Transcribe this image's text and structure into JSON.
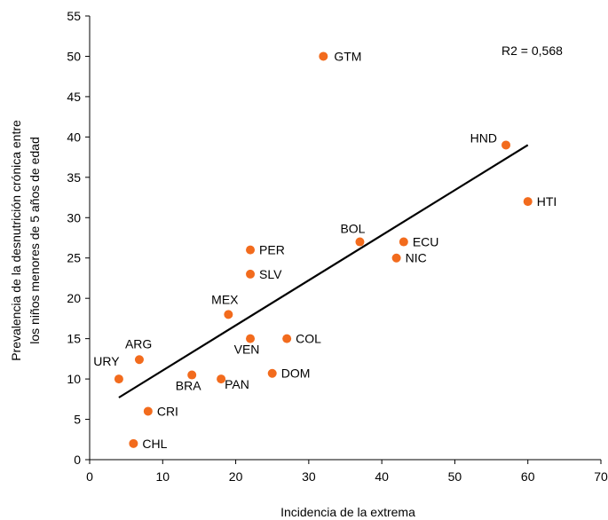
{
  "chart_data": {
    "type": "scatter",
    "title": "",
    "xlabel": "Incidencia de la extrema",
    "ylabel_lines": [
      "Prevalencia de la desnutrición crónica entre",
      "los niños menores de 5 años de edad"
    ],
    "xlim": [
      0,
      70
    ],
    "ylim": [
      0,
      55
    ],
    "x_ticks": [
      0,
      10,
      20,
      30,
      40,
      50,
      60,
      70
    ],
    "y_ticks": [
      0,
      5,
      10,
      15,
      20,
      25,
      30,
      35,
      40,
      45,
      50,
      55
    ],
    "grid": false,
    "point_color": "#F26B1D",
    "points": [
      {
        "label": "GTM",
        "x": 32,
        "y": 50
      },
      {
        "label": "HND",
        "x": 57,
        "y": 39
      },
      {
        "label": "HTI",
        "x": 60,
        "y": 32
      },
      {
        "label": "BOL",
        "x": 37,
        "y": 27
      },
      {
        "label": "ECU",
        "x": 43,
        "y": 27
      },
      {
        "label": "NIC",
        "x": 42,
        "y": 25
      },
      {
        "label": "PER",
        "x": 22,
        "y": 26
      },
      {
        "label": "SLV",
        "x": 22,
        "y": 23
      },
      {
        "label": "MEX",
        "x": 19,
        "y": 18
      },
      {
        "label": "VEN",
        "x": 22,
        "y": 15
      },
      {
        "label": "COL",
        "x": 27,
        "y": 15
      },
      {
        "label": "ARG",
        "x": 6.8,
        "y": 12.4
      },
      {
        "label": "URY",
        "x": 4,
        "y": 10
      },
      {
        "label": "BRA",
        "x": 14,
        "y": 10.5
      },
      {
        "label": "PAN",
        "x": 18,
        "y": 10
      },
      {
        "label": "DOM",
        "x": 25,
        "y": 10.7
      },
      {
        "label": "CRI",
        "x": 8,
        "y": 6
      },
      {
        "label": "CHL",
        "x": 6,
        "y": 2
      }
    ],
    "trendline": {
      "x": [
        4,
        60
      ],
      "y": [
        7.7,
        39
      ]
    },
    "annotation": "R2 = 0,568"
  }
}
